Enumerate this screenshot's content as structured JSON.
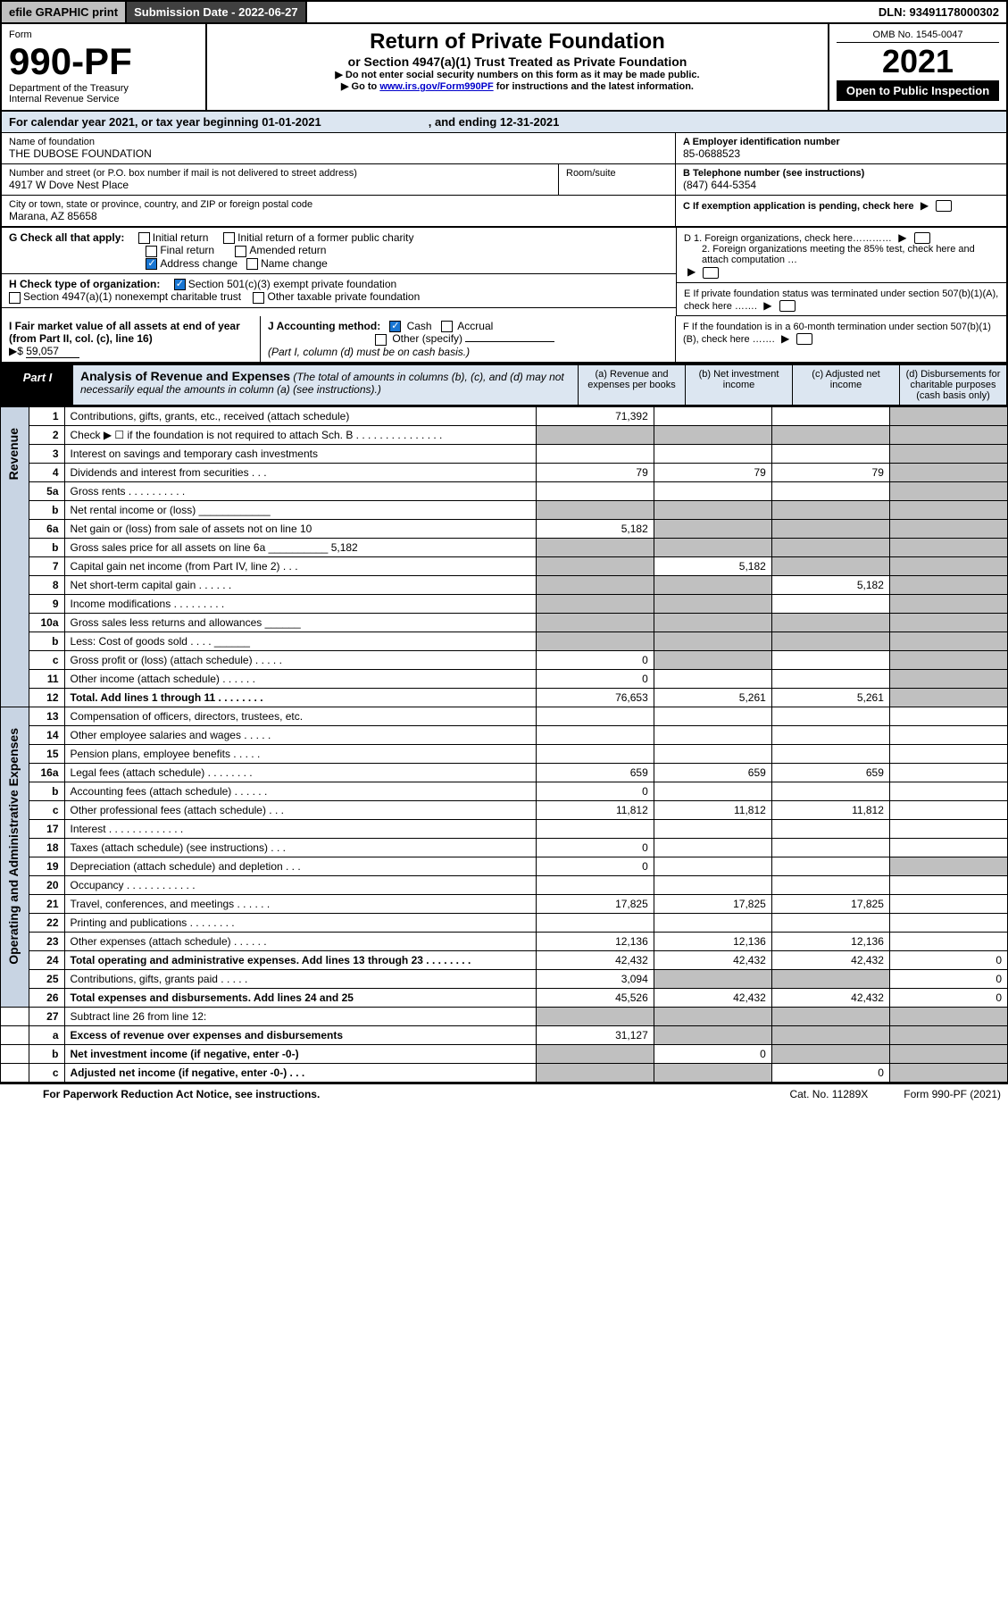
{
  "topbar": {
    "efile": "efile GRAPHIC print",
    "sub_label": "Submission Date - 2022-06-27",
    "dln": "DLN: 93491178000302"
  },
  "header": {
    "form_word": "Form",
    "form_num": "990-PF",
    "dept": "Department of the Treasury",
    "irs": "Internal Revenue Service",
    "title": "Return of Private Foundation",
    "subtitle": "or Section 4947(a)(1) Trust Treated as Private Foundation",
    "note1": "▶ Do not enter social security numbers on this form as it may be made public.",
    "note2_pre": "▶ Go to ",
    "note2_link": "www.irs.gov/Form990PF",
    "note2_post": " for instructions and the latest information.",
    "omb": "OMB No. 1545-0047",
    "year": "2021",
    "open": "Open to Public Inspection"
  },
  "calyear": {
    "pre": "For calendar year 2021, or tax year beginning 01-01-2021",
    "post": ", and ending 12-31-2021"
  },
  "info": {
    "name_label": "Name of foundation",
    "name": "THE DUBOSE FOUNDATION",
    "addr_label": "Number and street (or P.O. box number if mail is not delivered to street address)",
    "addr": "4917 W Dove Nest Place",
    "room_label": "Room/suite",
    "city_label": "City or town, state or province, country, and ZIP or foreign postal code",
    "city": "Marana, AZ  85658",
    "a_label": "A Employer identification number",
    "a_val": "85-0688523",
    "b_label": "B Telephone number (see instructions)",
    "b_val": "(847) 644-5354",
    "c_label": "C If exemption application is pending, check here"
  },
  "checks": {
    "g_label": "G Check all that apply:",
    "g1": "Initial return",
    "g2": "Initial return of a former public charity",
    "g3": "Final return",
    "g4": "Amended return",
    "g5": "Address change",
    "g6": "Name change",
    "h_label": "H Check type of organization:",
    "h1": "Section 501(c)(3) exempt private foundation",
    "h2": "Section 4947(a)(1) nonexempt charitable trust",
    "h3": "Other taxable private foundation",
    "d1": "D 1. Foreign organizations, check here…………",
    "d2": "2. Foreign organizations meeting the 85% test, check here and attach computation …",
    "e": "E  If private foundation status was terminated under section 507(b)(1)(A), check here …….",
    "f": "F  If the foundation is in a 60-month termination under section 507(b)(1)(B), check here ……."
  },
  "fmv": {
    "i_label": "I Fair market value of all assets at end of year (from Part II, col. (c), line 16)",
    "i_arrow": "▶$",
    "i_val": "59,057",
    "j_label": "J Accounting method:",
    "j1": "Cash",
    "j2": "Accrual",
    "j3": "Other (specify)",
    "j_note": "(Part I, column (d) must be on cash basis.)"
  },
  "part1": {
    "tag": "Part I",
    "title": "Analysis of Revenue and Expenses",
    "title_note": " (The total of amounts in columns (b), (c), and (d) may not necessarily equal the amounts in column (a) (see instructions).)",
    "col_a": "(a)   Revenue and expenses per books",
    "col_b": "(b)   Net investment income",
    "col_c": "(c)   Adjusted net income",
    "col_d": "(d)  Disbursements for charitable purposes (cash basis only)"
  },
  "side": {
    "rev": "Revenue",
    "exp": "Operating and Administrative Expenses"
  },
  "rows": [
    {
      "n": "1",
      "d": "Contributions, gifts, grants, etc., received (attach schedule)",
      "a": "71,392",
      "b": "",
      "c": "",
      "dS": true
    },
    {
      "n": "2",
      "d": "Check ▶ ☐ if the foundation is not required to attach Sch. B   .   .   .   .   .   .   .   .   .   .   .   .   .   .   .",
      "aS": true,
      "bS": true,
      "cS": true,
      "dS": true
    },
    {
      "n": "3",
      "d": "Interest on savings and temporary cash investments",
      "a": "",
      "b": "",
      "c": "",
      "dS": true
    },
    {
      "n": "4",
      "d": "Dividends and interest from securities   .   .   .",
      "a": "79",
      "b": "79",
      "c": "79",
      "dS": true
    },
    {
      "n": "5a",
      "d": "Gross rents   .   .   .   .   .   .   .   .   .   .",
      "a": "",
      "b": "",
      "c": "",
      "dS": true
    },
    {
      "n": "b",
      "d": "Net rental income or (loss) ____________",
      "aS": true,
      "bS": true,
      "cS": true,
      "dS": true
    },
    {
      "n": "6a",
      "d": "Net gain or (loss) from sale of assets not on line 10",
      "a": "5,182",
      "bS": true,
      "cS": true,
      "dS": true
    },
    {
      "n": "b",
      "d": "Gross sales price for all assets on line 6a __________ 5,182",
      "aS": true,
      "bS": true,
      "cS": true,
      "dS": true
    },
    {
      "n": "7",
      "d": "Capital gain net income (from Part IV, line 2)   .   .   .",
      "aS": true,
      "b": "5,182",
      "cS": true,
      "dS": true
    },
    {
      "n": "8",
      "d": "Net short-term capital gain   .   .   .   .   .   .",
      "aS": true,
      "bS": true,
      "c": "5,182",
      "dS": true
    },
    {
      "n": "9",
      "d": "Income modifications .   .   .   .   .   .   .   .   .",
      "aS": true,
      "bS": true,
      "c": "",
      "dS": true
    },
    {
      "n": "10a",
      "d": "Gross sales less returns and allowances   ______",
      "aS": true,
      "bS": true,
      "cS": true,
      "dS": true
    },
    {
      "n": "b",
      "d": "Less: Cost of goods sold   .   .   .   .   ______",
      "aS": true,
      "bS": true,
      "cS": true,
      "dS": true
    },
    {
      "n": "c",
      "d": "Gross profit or (loss) (attach schedule)   .   .   .   .   .",
      "a": "0",
      "bS": true,
      "c": "",
      "dS": true
    },
    {
      "n": "11",
      "d": "Other income (attach schedule)   .   .   .   .   .   .",
      "a": "0",
      "b": "",
      "c": "",
      "dS": true
    },
    {
      "n": "12",
      "d": "Total. Add lines 1 through 11   .   .   .   .   .   .   .   .",
      "bold": true,
      "a": "76,653",
      "b": "5,261",
      "c": "5,261",
      "dS": true
    }
  ],
  "erows": [
    {
      "n": "13",
      "d": "Compensation of officers, directors, trustees, etc.",
      "a": "",
      "b": "",
      "c": "",
      "dv": ""
    },
    {
      "n": "14",
      "d": "Other employee salaries and wages   .   .   .   .   .",
      "a": "",
      "b": "",
      "c": "",
      "dv": ""
    },
    {
      "n": "15",
      "d": "Pension plans, employee benefits   .   .   .   .   .",
      "a": "",
      "b": "",
      "c": "",
      "dv": ""
    },
    {
      "n": "16a",
      "d": "Legal fees (attach schedule) .   .   .   .   .   .   .   .",
      "a": "659",
      "b": "659",
      "c": "659",
      "dv": ""
    },
    {
      "n": "b",
      "d": "Accounting fees (attach schedule) .   .   .   .   .   .",
      "a": "0",
      "b": "",
      "c": "",
      "dv": ""
    },
    {
      "n": "c",
      "d": "Other professional fees (attach schedule)   .   .   .",
      "a": "11,812",
      "b": "11,812",
      "c": "11,812",
      "dv": ""
    },
    {
      "n": "17",
      "d": "Interest .   .   .   .   .   .   .   .   .   .   .   .   .",
      "a": "",
      "b": "",
      "c": "",
      "dv": ""
    },
    {
      "n": "18",
      "d": "Taxes (attach schedule) (see instructions)   .   .   .",
      "a": "0",
      "b": "",
      "c": "",
      "dv": ""
    },
    {
      "n": "19",
      "d": "Depreciation (attach schedule) and depletion   .   .   .",
      "a": "0",
      "b": "",
      "c": "",
      "dS": true
    },
    {
      "n": "20",
      "d": "Occupancy .   .   .   .   .   .   .   .   .   .   .   .",
      "a": "",
      "b": "",
      "c": "",
      "dv": ""
    },
    {
      "n": "21",
      "d": "Travel, conferences, and meetings .   .   .   .   .   .",
      "a": "17,825",
      "b": "17,825",
      "c": "17,825",
      "dv": ""
    },
    {
      "n": "22",
      "d": "Printing and publications .   .   .   .   .   .   .   .",
      "a": "",
      "b": "",
      "c": "",
      "dv": ""
    },
    {
      "n": "23",
      "d": "Other expenses (attach schedule) .   .   .   .   .   .",
      "a": "12,136",
      "b": "12,136",
      "c": "12,136",
      "dv": ""
    },
    {
      "n": "24",
      "d": "Total operating and administrative expenses. Add lines 13 through 23   .   .   .   .   .   .   .   .",
      "bold": true,
      "a": "42,432",
      "b": "42,432",
      "c": "42,432",
      "dv": "0"
    },
    {
      "n": "25",
      "d": "Contributions, gifts, grants paid   .   .   .   .   .",
      "a": "3,094",
      "bS": true,
      "cS": true,
      "dv": "0"
    },
    {
      "n": "26",
      "d": "Total expenses and disbursements. Add lines 24 and 25",
      "bold": true,
      "a": "45,526",
      "b": "42,432",
      "c": "42,432",
      "dv": "0"
    }
  ],
  "brows": [
    {
      "n": "27",
      "d": "Subtract line 26 from line 12:",
      "bold": false,
      "aS": true,
      "bS": true,
      "cS": true,
      "dS": true
    },
    {
      "n": "a",
      "d": "Excess of revenue over expenses and disbursements",
      "bold": true,
      "a": "31,127",
      "bS": true,
      "cS": true,
      "dS": true
    },
    {
      "n": "b",
      "d": "Net investment income (if negative, enter -0-)",
      "bold": true,
      "aS": true,
      "b": "0",
      "cS": true,
      "dS": true
    },
    {
      "n": "c",
      "d": "Adjusted net income (if negative, enter -0-)   .   .   .",
      "bold": true,
      "aS": true,
      "bS": true,
      "c": "0",
      "dS": true
    }
  ],
  "footer": {
    "pra": "For Paperwork Reduction Act Notice, see instructions.",
    "cat": "Cat. No. 11289X",
    "form": "Form 990-PF (2021)"
  }
}
